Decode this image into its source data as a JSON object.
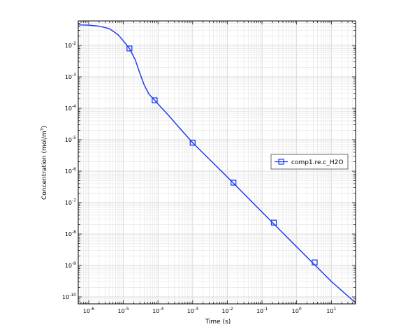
{
  "chart_data": {
    "type": "line",
    "xlabel": "Time (s)",
    "ylabel": "Concentration (mol/m³)",
    "x_scale": "log",
    "y_scale": "log",
    "xlim": [
      5e-07,
      50
    ],
    "ylim": [
      6e-11,
      0.06
    ],
    "x_ticks": [
      1e-06,
      1e-05,
      0.0001,
      0.001,
      0.01,
      0.1,
      1,
      10
    ],
    "x_tick_labels": [
      {
        "base": "10",
        "exp": "-6"
      },
      {
        "base": "10",
        "exp": "-5"
      },
      {
        "base": "10",
        "exp": "-4"
      },
      {
        "base": "10",
        "exp": "-3"
      },
      {
        "base": "10",
        "exp": "-2"
      },
      {
        "base": "10",
        "exp": "-1"
      },
      {
        "base": "10",
        "exp": "0"
      },
      {
        "base": "10",
        "exp": "1"
      }
    ],
    "y_ticks": [
      1e-10,
      1e-09,
      1e-08,
      1e-07,
      1e-06,
      1e-05,
      0.0001,
      0.001,
      0.01
    ],
    "y_tick_labels": [
      {
        "base": "10",
        "exp": "-10"
      },
      {
        "base": "10",
        "exp": "-9"
      },
      {
        "base": "10",
        "exp": "-8"
      },
      {
        "base": "10",
        "exp": "-7"
      },
      {
        "base": "10",
        "exp": "-6"
      },
      {
        "base": "10",
        "exp": "-5"
      },
      {
        "base": "10",
        "exp": "-4"
      },
      {
        "base": "10",
        "exp": "-3"
      },
      {
        "base": "10",
        "exp": "-2"
      }
    ],
    "grid": true,
    "legend_position": "right",
    "series": [
      {
        "name": "comp1.re.c_H2O",
        "color": "#1f3ff0",
        "marker": "square",
        "line_points": [
          [
            5e-07,
            0.045
          ],
          [
            1e-06,
            0.044
          ],
          [
            2e-06,
            0.041
          ],
          [
            4e-06,
            0.034
          ],
          [
            7e-06,
            0.022
          ],
          [
            1e-05,
            0.014
          ],
          [
            1.5e-05,
            0.008
          ],
          [
            2.2e-05,
            0.0035
          ],
          [
            3e-05,
            0.0013
          ],
          [
            4e-05,
            0.00055
          ],
          [
            5.5e-05,
            0.00028
          ],
          [
            8e-05,
            0.00018
          ],
          [
            0.00012,
            0.00011
          ],
          [
            0.0002,
            6e-05
          ],
          [
            0.0004,
            2.5e-05
          ],
          [
            0.001,
            8e-06
          ],
          [
            0.01,
            6.5e-07
          ],
          [
            0.1,
            5e-08
          ],
          [
            1,
            3.9e-09
          ],
          [
            10,
            3.1e-10
          ],
          [
            50,
            6.5e-11
          ]
        ],
        "markers": [
          [
            1.5e-05,
            0.008
          ],
          [
            8e-05,
            0.00018
          ],
          [
            0.001,
            8e-06
          ],
          [
            0.015,
            4.3e-07
          ],
          [
            0.22,
            2.3e-08
          ],
          [
            3.3,
            1.25e-09
          ]
        ]
      }
    ]
  }
}
